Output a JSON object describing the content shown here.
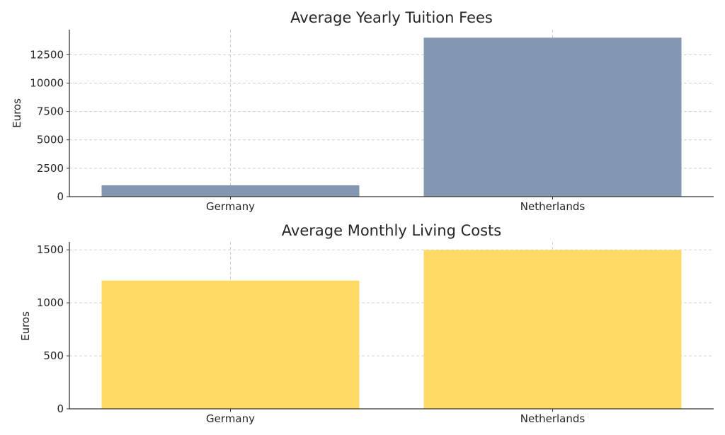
{
  "chart_data": [
    {
      "type": "bar",
      "title": "Average Yearly Tuition Fees",
      "xlabel": "",
      "ylabel": "Euros",
      "categories": [
        "Germany",
        "Netherlands"
      ],
      "values": [
        1000,
        14000
      ],
      "ylim": [
        0,
        14700
      ],
      "yticks": [
        0,
        2500,
        5000,
        7500,
        10000,
        12500
      ],
      "grid": true,
      "legend": "none",
      "color": "#8497b0"
    },
    {
      "type": "bar",
      "title": "Average Monthly Living Costs",
      "xlabel": "",
      "ylabel": "Euros",
      "categories": [
        "Germany",
        "Netherlands"
      ],
      "values": [
        1210,
        1500
      ],
      "ylim": [
        0,
        1575
      ],
      "yticks": [
        0,
        500,
        1000,
        1500
      ],
      "grid": true,
      "legend": "none",
      "color": "#ffd966"
    }
  ]
}
